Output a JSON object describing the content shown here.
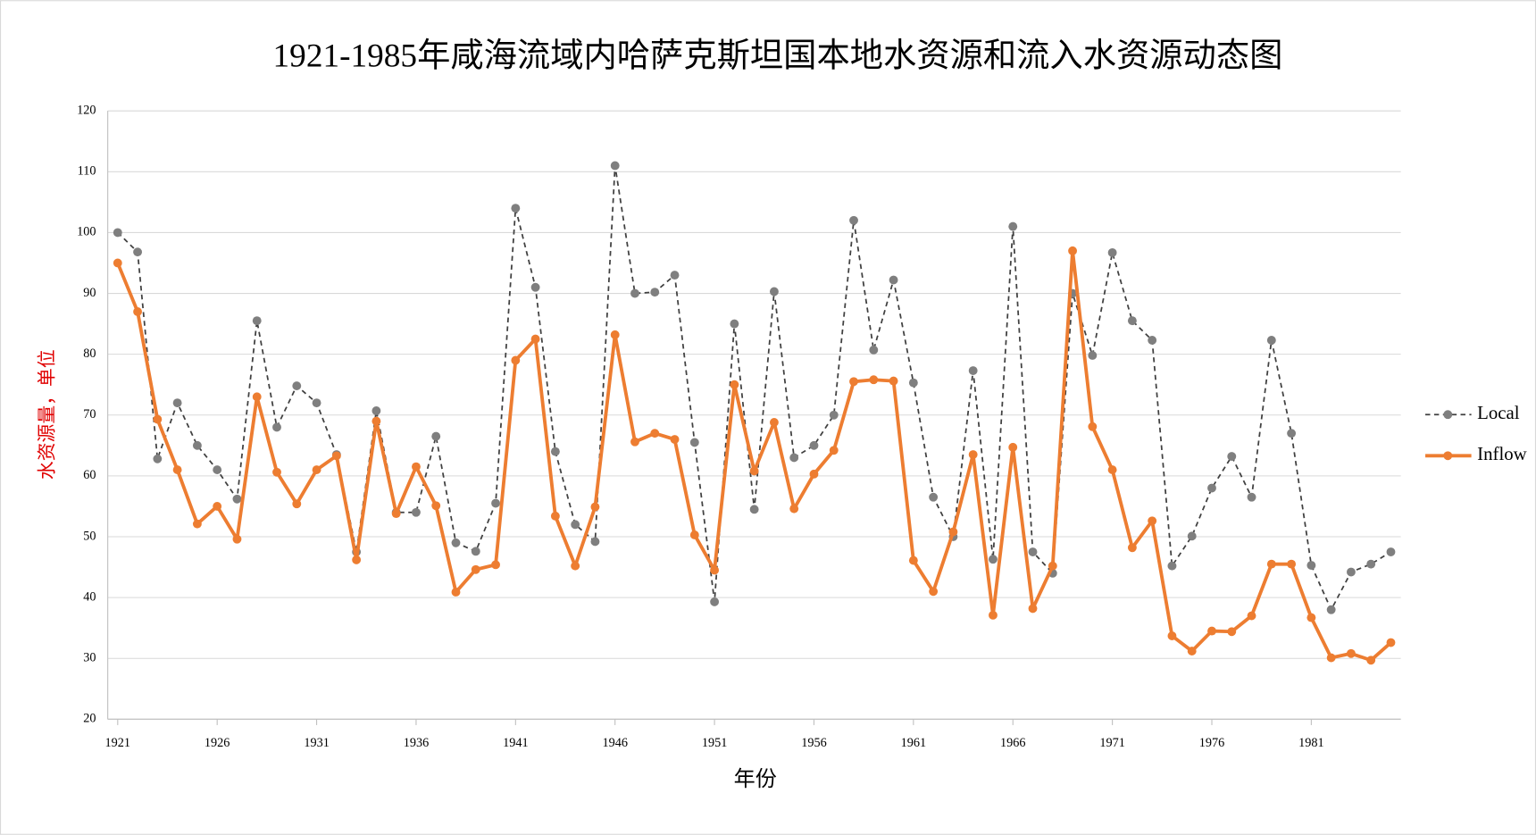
{
  "chart_data": {
    "type": "line",
    "title": "1921-1985年咸海流域内哈萨克斯坦国本地水资源和流入水资源动态图",
    "x_label": "年份",
    "y_label": "水资源量，单位",
    "x": [
      1921,
      1922,
      1923,
      1924,
      1925,
      1926,
      1927,
      1928,
      1929,
      1930,
      1931,
      1932,
      1933,
      1934,
      1935,
      1936,
      1937,
      1938,
      1939,
      1940,
      1941,
      1942,
      1943,
      1944,
      1945,
      1946,
      1947,
      1948,
      1949,
      1950,
      1951,
      1952,
      1953,
      1954,
      1955,
      1956,
      1957,
      1958,
      1959,
      1960,
      1961,
      1962,
      1963,
      1964,
      1965,
      1966,
      1967,
      1968,
      1969,
      1970,
      1971,
      1972,
      1973,
      1974,
      1975,
      1976,
      1977,
      1978,
      1979,
      1980,
      1981,
      1982,
      1983,
      1984,
      1985
    ],
    "series": [
      {
        "name": "Local",
        "color": "#7f7f7f",
        "dashed": true,
        "values": [
          100,
          96.8,
          62.8,
          72,
          65,
          61,
          56.2,
          85.5,
          68,
          74.8,
          72,
          63.5,
          47.5,
          70.7,
          54,
          54,
          66.5,
          49,
          47.6,
          55.5,
          104,
          91,
          64,
          52,
          49.2,
          111,
          90,
          90.2,
          93,
          65.5,
          39.3,
          85,
          54.5,
          90.3,
          63,
          65,
          70,
          102,
          80.7,
          92.2,
          75.3,
          56.5,
          50,
          77.3,
          46.3,
          101,
          47.5,
          44,
          90,
          79.8,
          96.7,
          85.5,
          82.3,
          45.2,
          50.1,
          58,
          63.2,
          56.5,
          82.3,
          67,
          45.3,
          38,
          44.2,
          45.5,
          47.5
        ]
      },
      {
        "name": "Inflow",
        "color": "#ed7d31",
        "dashed": false,
        "values": [
          95,
          87,
          69.3,
          61,
          52.1,
          55,
          49.6,
          73,
          60.6,
          55.4,
          61,
          63.3,
          46.2,
          69,
          53.8,
          61.5,
          55.1,
          40.9,
          44.6,
          45.4,
          79,
          82.5,
          53.4,
          45.2,
          54.9,
          83.2,
          65.6,
          67,
          66,
          50.3,
          44.5,
          75,
          60.8,
          68.8,
          54.6,
          60.3,
          64.2,
          75.5,
          75.8,
          75.6,
          46.1,
          41,
          50.8,
          63.5,
          37.1,
          64.7,
          38.2,
          45.2,
          97,
          68.1,
          61,
          48.2,
          52.6,
          33.7,
          31.2,
          34.5,
          34.4,
          37,
          45.5,
          45.5,
          36.7,
          30.1,
          30.8,
          29.7,
          32.6
        ]
      }
    ],
    "xlim": [
      1920.5,
      1985.5
    ],
    "xticks": [
      1921,
      1926,
      1931,
      1936,
      1941,
      1946,
      1951,
      1956,
      1961,
      1966,
      1971,
      1976,
      1981
    ],
    "ylim": [
      20,
      120
    ],
    "yticks": [
      20,
      30,
      40,
      50,
      60,
      70,
      80,
      90,
      100,
      110,
      120
    ],
    "grid": true,
    "legend": "right"
  }
}
